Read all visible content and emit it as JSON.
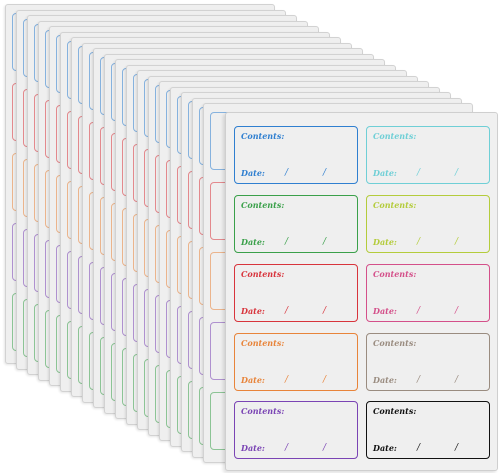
{
  "label_text": {
    "contents": "Contents:",
    "date": "Date:",
    "slash": "/"
  },
  "colors": {
    "blue": "#2f7fd0",
    "cyan": "#6fcfd6",
    "green": "#3aa04a",
    "lime": "#b4cc3c",
    "red": "#d8343c",
    "pink": "#d4508a",
    "orange": "#e8843a",
    "taupe": "#9a8c80",
    "purple": "#7a44b4",
    "black": "#111111"
  },
  "front_sheet": {
    "labels": [
      {
        "color": "blue"
      },
      {
        "color": "cyan"
      },
      {
        "color": "green"
      },
      {
        "color": "lime"
      },
      {
        "color": "red"
      },
      {
        "color": "pink"
      },
      {
        "color": "orange"
      },
      {
        "color": "taupe"
      },
      {
        "color": "purple"
      },
      {
        "color": "black"
      }
    ]
  },
  "stacked_sheet_count": 19
}
